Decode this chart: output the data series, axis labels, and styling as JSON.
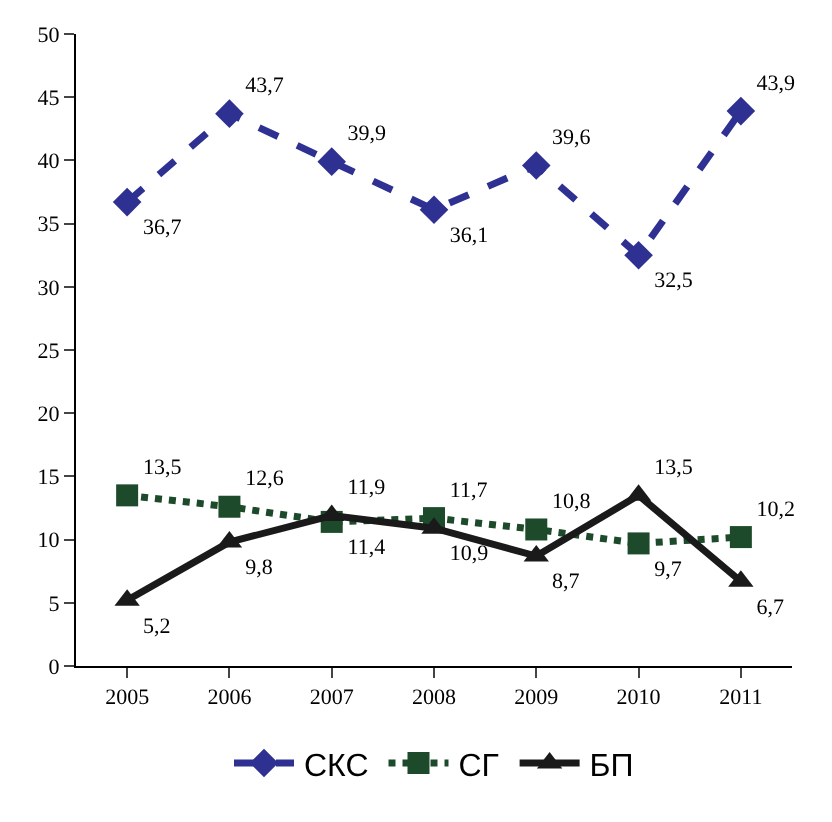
{
  "chart_data": {
    "type": "line",
    "categories": [
      "2005",
      "2006",
      "2007",
      "2008",
      "2009",
      "2010",
      "2011"
    ],
    "series": [
      {
        "name": "СКС",
        "color": "#2e3192",
        "values": [
          36.7,
          43.7,
          39.9,
          36.1,
          39.6,
          32.5,
          43.9
        ],
        "value_labels": [
          "36,7",
          "43,7",
          "39,9",
          "36,1",
          "39,6",
          "32,5",
          "43,9"
        ],
        "marker": "diamond",
        "line_style": "dashed"
      },
      {
        "name": "СГ",
        "color": "#1d4a2a",
        "values": [
          13.5,
          12.6,
          11.4,
          11.7,
          10.8,
          9.7,
          10.2
        ],
        "value_labels": [
          "13,5",
          "12,6",
          "11,4",
          "11,7",
          "10,8",
          "9,7",
          "10,2"
        ],
        "marker": "square",
        "line_style": "dotted"
      },
      {
        "name": "БП",
        "color": "#1a1a1a",
        "values": [
          5.2,
          9.8,
          11.9,
          10.9,
          8.7,
          13.5,
          6.7
        ],
        "value_labels": [
          "5,2",
          "9,8",
          "11,9",
          "10,9",
          "8,7",
          "13,5",
          "6,7"
        ],
        "marker": "triangle",
        "line_style": "solid"
      }
    ],
    "ylim": [
      0,
      50
    ],
    "yticks": [
      0,
      5,
      10,
      15,
      20,
      25,
      30,
      35,
      40,
      45,
      50
    ],
    "legend": "bottom"
  }
}
